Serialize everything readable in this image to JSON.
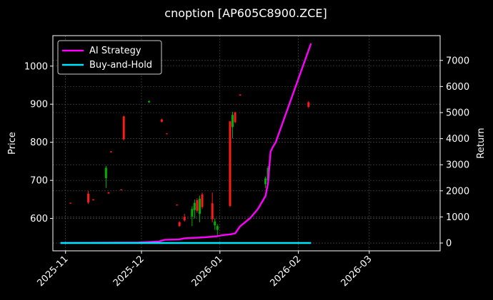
{
  "chart_data": {
    "type": "line",
    "title": "cnoption [AP605C8900.ZCE]",
    "ylabel_left": "Price",
    "ylabel_right": "Return",
    "xlabel": "",
    "grid": true,
    "legend_placement": "top-left",
    "x_range": [
      "2025-10-27",
      "2026-03-29"
    ],
    "ylim_left": [
      515,
      1080
    ],
    "ylim_right": [
      -300,
      7950
    ],
    "x_ticks": [
      "2025-11-01",
      "2025-12-01",
      "2026-01-01",
      "2026-02-01",
      "2026-03-01"
    ],
    "x_tick_labels": [
      "2025-11",
      "2025-12",
      "2026-01",
      "2026-02",
      "2026-03"
    ],
    "y_left_ticks": [
      600,
      700,
      800,
      900,
      1000
    ],
    "y_right_ticks": [
      0,
      1000,
      2000,
      3000,
      4000,
      5000,
      6000,
      7000
    ],
    "colors": {
      "up": "#00b000",
      "down": "#ff1a1a",
      "ai_strategy": "#ff00ff",
      "buy_and_hold": "#00e5ff",
      "grid": "#555555",
      "background": "#000000"
    },
    "candles": [
      {
        "date": "2025-11-03",
        "open": 641,
        "high": 642,
        "low": 639,
        "close": 640
      },
      {
        "date": "2025-11-10",
        "open": 665,
        "high": 672,
        "low": 638,
        "close": 642
      },
      {
        "date": "2025-11-12",
        "open": 650,
        "high": 651,
        "low": 647,
        "close": 648
      },
      {
        "date": "2025-11-17",
        "open": 706,
        "high": 738,
        "low": 680,
        "close": 733
      },
      {
        "date": "2025-11-18",
        "open": 668,
        "high": 670,
        "low": 664,
        "close": 666
      },
      {
        "date": "2025-11-19",
        "open": 776,
        "high": 777,
        "low": 773,
        "close": 774
      },
      {
        "date": "2025-11-23",
        "open": 676,
        "high": 677,
        "low": 674,
        "close": 675
      },
      {
        "date": "2025-11-24",
        "open": 868,
        "high": 870,
        "low": 805,
        "close": 808
      },
      {
        "date": "2025-12-04",
        "open": 905,
        "high": 910,
        "low": 903,
        "close": 908
      },
      {
        "date": "2025-12-09",
        "open": 860,
        "high": 862,
        "low": 852,
        "close": 854
      },
      {
        "date": "2025-12-11",
        "open": 823,
        "high": 824,
        "low": 821,
        "close": 822
      },
      {
        "date": "2025-12-15",
        "open": 636,
        "high": 637,
        "low": 634,
        "close": 635
      },
      {
        "date": "2025-12-16",
        "open": 590,
        "high": 593,
        "low": 578,
        "close": 580
      },
      {
        "date": "2025-12-18",
        "open": 604,
        "high": 612,
        "low": 592,
        "close": 595
      },
      {
        "date": "2025-12-21",
        "open": 605,
        "high": 632,
        "low": 580,
        "close": 625
      },
      {
        "date": "2025-12-22",
        "open": 622,
        "high": 650,
        "low": 600,
        "close": 641
      },
      {
        "date": "2025-12-23",
        "open": 648,
        "high": 653,
        "low": 615,
        "close": 620
      },
      {
        "date": "2025-12-24",
        "open": 612,
        "high": 660,
        "low": 590,
        "close": 652
      },
      {
        "date": "2025-12-25",
        "open": 663,
        "high": 668,
        "low": 625,
        "close": 630
      },
      {
        "date": "2025-12-29",
        "open": 640,
        "high": 668,
        "low": 590,
        "close": 598
      },
      {
        "date": "2025-12-30",
        "open": 582,
        "high": 600,
        "low": 570,
        "close": 592
      },
      {
        "date": "2025-12-31",
        "open": 570,
        "high": 585,
        "low": 555,
        "close": 580
      },
      {
        "date": "2026-01-05",
        "open": 855,
        "high": 856,
        "low": 630,
        "close": 633
      },
      {
        "date": "2026-01-06",
        "open": 840,
        "high": 880,
        "low": 810,
        "close": 872
      },
      {
        "date": "2026-01-07",
        "open": 878,
        "high": 880,
        "low": 850,
        "close": 853
      },
      {
        "date": "2026-01-09",
        "open": 925,
        "high": 926,
        "low": 922,
        "close": 923
      },
      {
        "date": "2026-01-19",
        "open": 690,
        "high": 710,
        "low": 680,
        "close": 705
      },
      {
        "date": "2026-01-20",
        "open": 700,
        "high": 738,
        "low": 688,
        "close": 733
      },
      {
        "date": "2026-02-05",
        "open": 905,
        "high": 908,
        "low": 890,
        "close": 893
      }
    ],
    "series": [
      {
        "name": "AI Strategy",
        "x": [
          "2025-10-30",
          "2025-11-30",
          "2025-12-08",
          "2025-12-10",
          "2025-12-16",
          "2025-12-18",
          "2025-12-26",
          "2025-12-31",
          "2026-01-02",
          "2026-01-05",
          "2026-01-07",
          "2026-01-09",
          "2026-01-13",
          "2026-01-16",
          "2026-01-19",
          "2026-01-20",
          "2026-01-21",
          "2026-01-22",
          "2026-01-23",
          "2026-02-06"
        ],
        "values": [
          0,
          20,
          60,
          120,
          140,
          180,
          220,
          260,
          300,
          330,
          370,
          640,
          960,
          1300,
          1800,
          2300,
          3500,
          3700,
          3850,
          7650
        ]
      },
      {
        "name": "Buy-and-Hold",
        "x": [
          "2025-10-30",
          "2026-02-06"
        ],
        "values": [
          0,
          0
        ]
      }
    ]
  }
}
